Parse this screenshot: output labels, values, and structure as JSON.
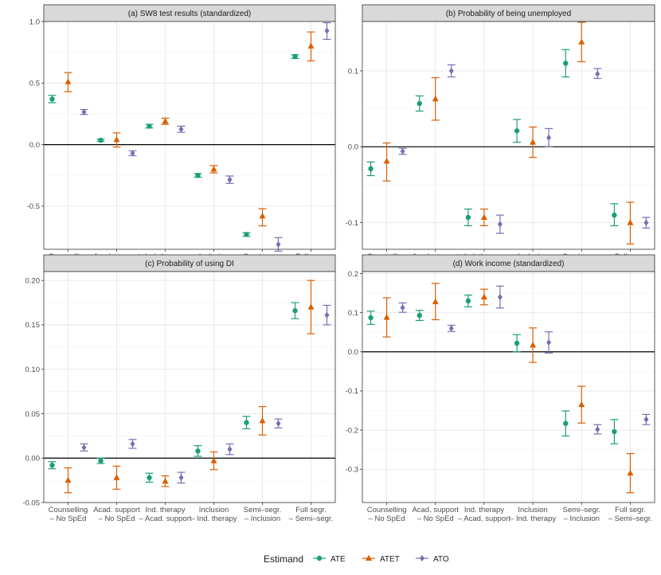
{
  "chart_data": [
    {
      "type": "errorbar",
      "title": "(a) SW8 test results (standardized)",
      "categories": [
        "Counselling\n– No SpEd",
        "Acad. support\n– No SpEd",
        "Ind. therapy\n– Acad. support",
        "Inclusion\n– Ind. therapy",
        "Semi–segr.\n– Inclusion",
        "Full segr.\n– Semi–segr."
      ],
      "ylim": [
        -0.85,
        1.0
      ],
      "yticks": [
        -0.5,
        0.0,
        0.5,
        1.0
      ],
      "ytick_labels": [
        "-0.5",
        "0.0",
        "0.5",
        "1.0"
      ],
      "series": [
        {
          "name": "ATE",
          "values": [
            0.37,
            0.035,
            0.15,
            -0.25,
            -0.73,
            0.715
          ],
          "lower": [
            0.34,
            0.025,
            0.135,
            -0.265,
            -0.745,
            0.7
          ],
          "upper": [
            0.4,
            0.045,
            0.165,
            -0.235,
            -0.715,
            0.73
          ]
        },
        {
          "name": "ATET",
          "values": [
            0.51,
            0.04,
            0.19,
            -0.2,
            -0.58,
            0.8
          ],
          "lower": [
            0.43,
            -0.02,
            0.165,
            -0.23,
            -0.66,
            0.68
          ],
          "upper": [
            0.585,
            0.095,
            0.215,
            -0.17,
            -0.52,
            0.915
          ]
        },
        {
          "name": "ATO",
          "values": [
            0.265,
            -0.07,
            0.125,
            -0.285,
            -0.81,
            0.925
          ],
          "lower": [
            0.245,
            -0.09,
            0.1,
            -0.315,
            -0.865,
            0.855
          ],
          "upper": [
            0.285,
            -0.05,
            0.15,
            -0.255,
            -0.755,
            0.99
          ]
        }
      ]
    },
    {
      "type": "errorbar",
      "title": "(b) Probability of being unemployed",
      "categories": [
        "Counselling\n– No SpEd",
        "Acad. support\n– No SpEd",
        "Ind. therapy\n– Acad. support",
        "Inclusion\n– Ind. therapy",
        "Semi–segr.\n– Inclusion",
        "Full segr.\n– Semi–segr."
      ],
      "ylim": [
        -0.135,
        0.165
      ],
      "yticks": [
        -0.1,
        0.0,
        0.1
      ],
      "ytick_labels": [
        "-0.1",
        "0.0",
        "0.1"
      ],
      "series": [
        {
          "name": "ATE",
          "values": [
            -0.029,
            0.057,
            -0.093,
            0.021,
            0.11,
            -0.09
          ],
          "lower": [
            -0.038,
            0.047,
            -0.104,
            0.006,
            0.092,
            -0.104
          ],
          "upper": [
            -0.02,
            0.067,
            -0.082,
            0.036,
            0.128,
            -0.075
          ]
        },
        {
          "name": "ATET",
          "values": [
            -0.019,
            0.063,
            -0.093,
            0.006,
            0.138,
            -0.1
          ],
          "lower": [
            -0.045,
            0.035,
            -0.104,
            -0.014,
            0.112,
            -0.128
          ],
          "upper": [
            0.005,
            0.091,
            -0.082,
            0.026,
            0.164,
            -0.073
          ]
        },
        {
          "name": "ATO",
          "values": [
            -0.006,
            0.1,
            -0.102,
            0.012,
            0.096,
            -0.1
          ],
          "lower": [
            -0.01,
            0.092,
            -0.114,
            0.0,
            0.09,
            -0.107
          ],
          "upper": [
            -0.002,
            0.108,
            -0.09,
            0.024,
            0.103,
            -0.093
          ]
        }
      ]
    },
    {
      "type": "errorbar",
      "title": "(c) Probability of using DI",
      "categories": [
        "Counselling\n– No SpEd",
        "Acad. support\n– No SpEd",
        "Ind. therapy\n– Acad. support",
        "Inclusion\n– Ind. therapy",
        "Semi–segr.\n– Inclusion",
        "Full segr.\n– Semi–segr."
      ],
      "ylim": [
        -0.05,
        0.21
      ],
      "yticks": [
        -0.05,
        0.0,
        0.05,
        0.1,
        0.15,
        0.2
      ],
      "ytick_labels": [
        "-0.05",
        "0.00",
        "0.05",
        "0.10",
        "0.15",
        "0.20"
      ],
      "series": [
        {
          "name": "ATE",
          "values": [
            -0.008,
            -0.003,
            -0.022,
            0.008,
            0.04,
            0.166
          ],
          "lower": [
            -0.012,
            -0.006,
            -0.027,
            0.002,
            0.033,
            0.157
          ],
          "upper": [
            -0.004,
            0.0,
            -0.017,
            0.014,
            0.047,
            0.175
          ]
        },
        {
          "name": "ATET",
          "values": [
            -0.025,
            -0.022,
            -0.026,
            -0.003,
            0.042,
            0.17
          ],
          "lower": [
            -0.039,
            -0.035,
            -0.032,
            -0.013,
            0.026,
            0.14
          ],
          "upper": [
            -0.011,
            -0.009,
            -0.02,
            0.007,
            0.058,
            0.2
          ]
        },
        {
          "name": "ATO",
          "values": [
            0.012,
            0.016,
            -0.022,
            0.01,
            0.039,
            0.161
          ],
          "lower": [
            0.008,
            0.011,
            -0.028,
            0.004,
            0.034,
            0.15
          ],
          "upper": [
            0.016,
            0.021,
            -0.016,
            0.016,
            0.044,
            0.172
          ]
        }
      ]
    },
    {
      "type": "errorbar",
      "title": "(d) Work income (standardized)",
      "categories": [
        "Counselling\n– No SpEd",
        "Acad. support\n– No SpEd",
        "Ind. therapy\n– Acad. support",
        "Inclusion\n– Ind. therapy",
        "Semi–segr.\n– Inclusion",
        "Full segr.\n– Semi–segr."
      ],
      "ylim": [
        -0.385,
        0.205
      ],
      "yticks": [
        -0.3,
        -0.2,
        -0.1,
        0.0,
        0.1,
        0.2
      ],
      "ytick_labels": [
        "-0.3",
        "-0.2",
        "-0.1",
        "0.0",
        "0.1",
        "0.2"
      ],
      "series": [
        {
          "name": "ATE",
          "values": [
            0.087,
            0.093,
            0.13,
            0.022,
            -0.183,
            -0.204
          ],
          "lower": [
            0.07,
            0.08,
            0.115,
            0.0,
            -0.215,
            -0.235
          ],
          "upper": [
            0.104,
            0.106,
            0.145,
            0.044,
            -0.151,
            -0.173
          ]
        },
        {
          "name": "ATET",
          "values": [
            0.088,
            0.128,
            0.14,
            0.017,
            -0.135,
            -0.31
          ],
          "lower": [
            0.038,
            0.082,
            0.12,
            -0.027,
            -0.182,
            -0.36
          ],
          "upper": [
            0.138,
            0.175,
            0.16,
            0.061,
            -0.088,
            -0.26
          ]
        },
        {
          "name": "ATO",
          "values": [
            0.113,
            0.06,
            0.14,
            0.024,
            -0.198,
            -0.173
          ],
          "lower": [
            0.101,
            0.052,
            0.112,
            -0.003,
            -0.21,
            -0.186
          ],
          "upper": [
            0.125,
            0.068,
            0.168,
            0.051,
            -0.186,
            -0.16
          ]
        }
      ]
    }
  ],
  "legend": {
    "title": "Estimand",
    "items": [
      "ATE",
      "ATET",
      "ATO"
    ]
  },
  "colors": {
    "ATE": "#1b9e77",
    "ATET": "#d95f02",
    "ATO": "#7570b3"
  }
}
